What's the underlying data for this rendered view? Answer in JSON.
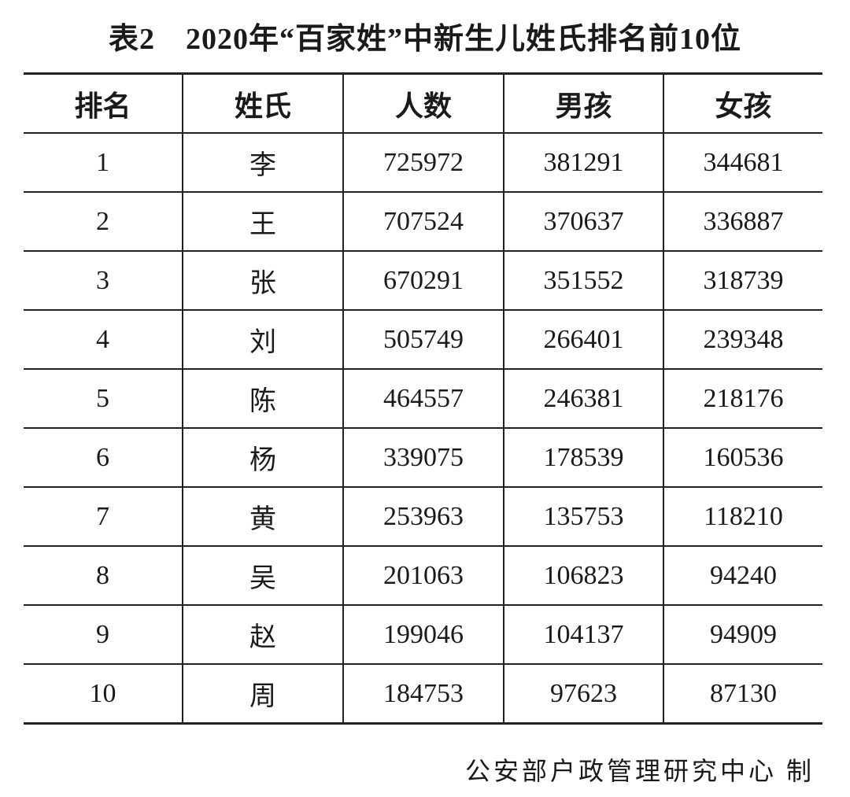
{
  "title": "表2　2020年“百家姓”中新生儿姓氏排名前10位",
  "table": {
    "headers": [
      "排名",
      "姓氏",
      "人数",
      "男孩",
      "女孩"
    ],
    "rows": [
      [
        "1",
        "李",
        "725972",
        "381291",
        "344681"
      ],
      [
        "2",
        "王",
        "707524",
        "370637",
        "336887"
      ],
      [
        "3",
        "张",
        "670291",
        "351552",
        "318739"
      ],
      [
        "4",
        "刘",
        "505749",
        "266401",
        "239348"
      ],
      [
        "5",
        "陈",
        "464557",
        "246381",
        "218176"
      ],
      [
        "6",
        "杨",
        "339075",
        "178539",
        "160536"
      ],
      [
        "7",
        "黄",
        "253963",
        "135753",
        "118210"
      ],
      [
        "8",
        "吴",
        "201063",
        "106823",
        "94240"
      ],
      [
        "9",
        "赵",
        "199046",
        "104137",
        "94909"
      ],
      [
        "10",
        "周",
        "184753",
        "97623",
        "87130"
      ]
    ]
  },
  "footer": "公安部户政管理研究中心 制"
}
